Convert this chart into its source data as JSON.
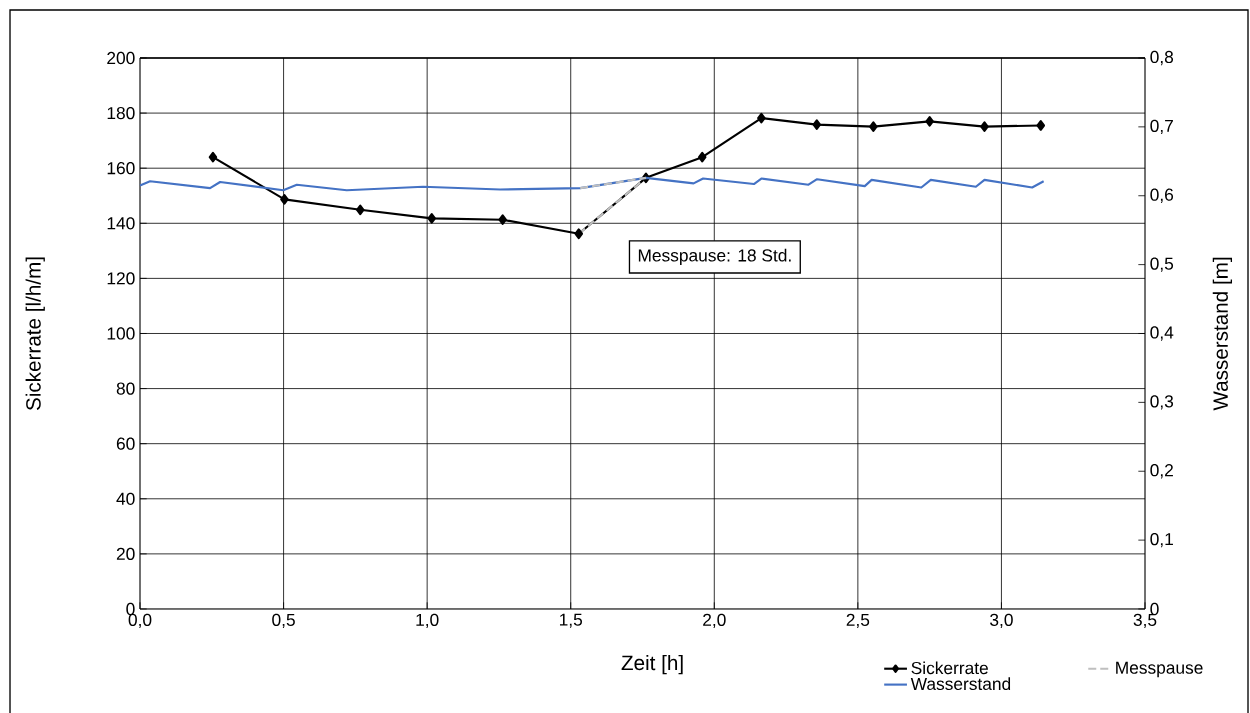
{
  "chart_data": {
    "type": "line",
    "xlabel": "Zeit [h]",
    "ylabel": "Sickerrate [l/h/m]",
    "y2label": "Wasserstand [m]",
    "xlim": [
      0,
      3.5
    ],
    "xticks": [
      {
        "value": 0,
        "label": "0,0"
      },
      {
        "value": 0.5,
        "label": "0,5"
      },
      {
        "value": 1,
        "label": "1,0"
      },
      {
        "value": 1.5,
        "label": "1,5"
      },
      {
        "value": 2,
        "label": "2,0"
      },
      {
        "value": 2.5,
        "label": "2,5"
      },
      {
        "value": 3,
        "label": "3,0"
      },
      {
        "value": 3.5,
        "label": "3,5"
      }
    ],
    "ylim": [
      0,
      200
    ],
    "yticks": [
      0,
      20,
      40,
      60,
      80,
      100,
      120,
      140,
      160,
      180,
      200
    ],
    "y2lim": [
      0,
      0.8
    ],
    "y2ticks": [
      0,
      {
        "value": 0.1,
        "label": "0,1"
      },
      {
        "value": 0.2,
        "label": "0,2"
      },
      {
        "value": 0.3,
        "label": "0,3"
      },
      {
        "value": 0.4,
        "label": "0,4"
      },
      {
        "value": 0.5,
        "label": "0,5"
      },
      {
        "value": 0.6,
        "label": "0,6"
      },
      {
        "value": 0.7,
        "label": "0,7"
      },
      {
        "value": 0.8,
        "label": "0,8"
      }
    ],
    "grid": true,
    "legend": "bottom right",
    "annotations": [
      "Messpause: 18 Std."
    ],
    "series": [
      {
        "name": "Sickerrate",
        "color": "#000000",
        "marker": "diamond",
        "line_style": "solid",
        "x": [
          0.254,
          0.503,
          0.767,
          1.016,
          1.263,
          1.528,
          1.762,
          1.958,
          2.164,
          2.357,
          2.554,
          2.75,
          2.941,
          3.137
        ],
        "values": [
          164.0,
          148.7,
          144.9,
          141.8,
          141.3,
          136.2,
          156.5,
          164.0,
          178.2,
          175.8,
          175.1,
          177.0,
          175.1,
          175.5
        ]
      },
      {
        "name": "Messpause",
        "color": "#bfbfbf",
        "line_style": "dashed",
        "x": [
          1.528,
          1.762
        ],
        "values": [
          136.2,
          156.5
        ]
      },
      {
        "name": "Wasserstand",
        "color": "#4472c4",
        "axis": "y2",
        "line_style": "solid",
        "x": [
          0,
          0.035,
          0.244,
          0.279,
          0.499,
          0.546,
          0.72,
          0.986,
          1.254,
          1.533,
          1.762,
          1.928,
          1.961,
          2.138,
          2.164,
          2.328,
          2.358,
          2.524,
          2.548,
          2.721,
          2.754,
          2.911,
          2.941,
          3.107,
          3.147
        ],
        "values": [
          0.615,
          0.621,
          0.611,
          0.62,
          0.608,
          0.616,
          0.608,
          0.613,
          0.609,
          0.611,
          0.626,
          0.618,
          0.625,
          0.617,
          0.625,
          0.616,
          0.624,
          0.614,
          0.623,
          0.612,
          0.623,
          0.613,
          0.623,
          0.612,
          0.621
        ]
      },
      {
        "color": "#bfbfbf",
        "axis": "y2",
        "line_style": "dashed",
        "x": [
          1.533,
          1.762
        ],
        "values": [
          0.611,
          0.626
        ]
      }
    ]
  }
}
